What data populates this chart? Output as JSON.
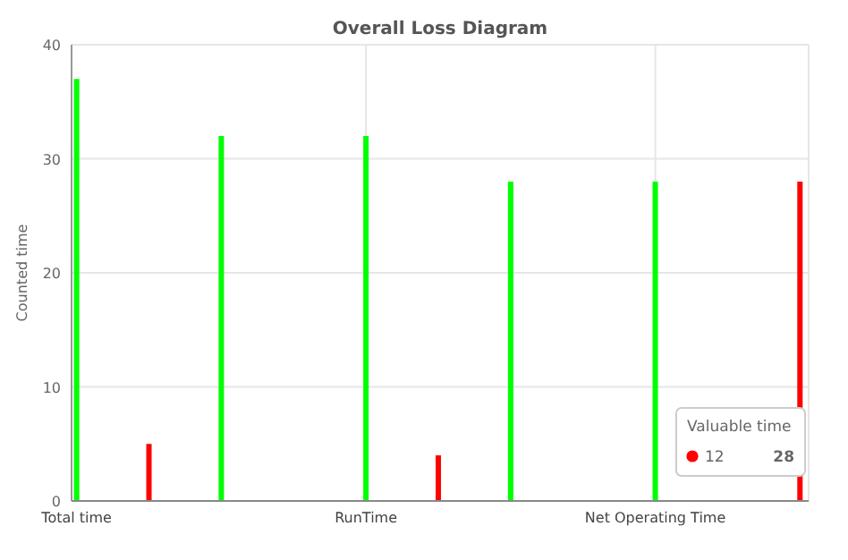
{
  "chart_data": {
    "type": "bar",
    "title": "Overall Loss Diagram",
    "ylabel": "Counted time",
    "categories": [
      "Total time",
      null,
      null,
      null,
      "RunTime",
      null,
      null,
      null,
      "Net Operating Time",
      null,
      null
    ],
    "values": [
      37,
      5,
      32,
      null,
      32,
      4,
      28,
      null,
      28,
      null,
      28
    ],
    "colors": [
      "#00ff00",
      "#ff0000",
      "#00ff00",
      null,
      "#00ff00",
      "#ff0000",
      "#00ff00",
      null,
      "#00ff00",
      null,
      "#ff0000"
    ],
    "ylim": [
      0,
      40
    ],
    "yticks": [
      0,
      10,
      20,
      30,
      40
    ],
    "grid": true,
    "annotations": [
      "Valuable time",
      "12",
      "28"
    ]
  }
}
